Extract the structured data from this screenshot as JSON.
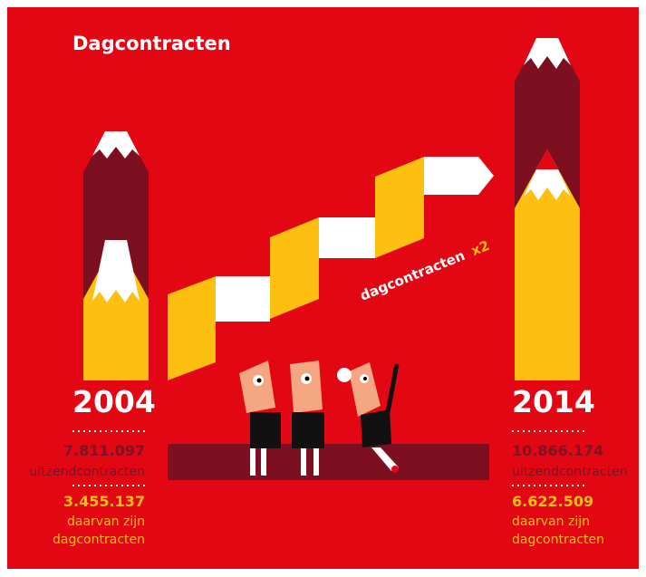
{
  "title": "Dagcontracten",
  "ribbon_label": {
    "text": "dagcontracten",
    "emphasis": "x2"
  },
  "left": {
    "year": "2004",
    "total": "7.811.097",
    "total_label": "uitzendcontracten",
    "day": "3.455.137",
    "day_label": [
      "daarvan zijn",
      "dagcontracten"
    ]
  },
  "right": {
    "year": "2014",
    "total": "10.866.174",
    "total_label": "uitzendcontracten",
    "day": "6.622.509",
    "day_label": [
      "daarvan zijn",
      "dagcontracten"
    ]
  }
}
